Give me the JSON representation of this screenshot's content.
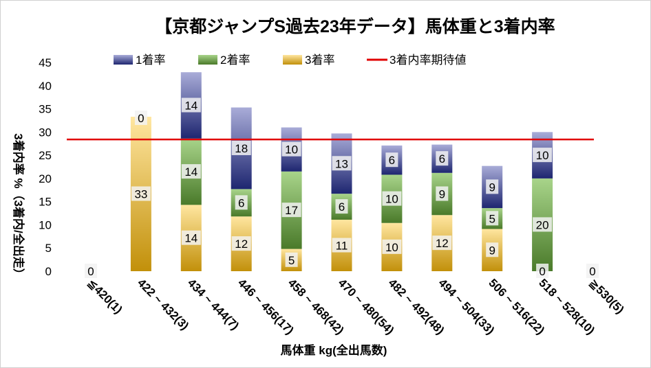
{
  "chart_data": {
    "type": "bar",
    "stacked": true,
    "title": "【京都ジャンプS過去23年データ】馬体重と3着内率",
    "xlabel": "馬体重 kg(全出馬数)",
    "ylabel": "3着内率 %（3着内/全出走）",
    "ylim": [
      0,
      45
    ],
    "yticks": [
      "0",
      "5",
      "10",
      "15",
      "20",
      "25",
      "30",
      "35",
      "40",
      "45"
    ],
    "grid": false,
    "legend_position": "top",
    "categories": [
      "≦420(1)",
      "422 ~ 432(3)",
      "434 ~ 444(7)",
      "446 ~ 456(17)",
      "458 ~ 468(42)",
      "470 ~ 480(54)",
      "482 ~ 492(48)",
      "494 ~ 504(33)",
      "506 ~ 516(22)",
      "518 ~ 528(10)",
      "≧530(5)"
    ],
    "series": [
      {
        "name": "3着率",
        "color": "#c9960f",
        "values": [
          0,
          33.3,
          14.3,
          11.8,
          4.8,
          11.1,
          10.4,
          12.1,
          9.1,
          0,
          0
        ],
        "labels": [
          "0",
          "33",
          "14",
          "12",
          "5",
          "11",
          "10",
          "12",
          "9",
          "0",
          "0"
        ]
      },
      {
        "name": "2着率",
        "color": "#5a8a35",
        "values": [
          0,
          0,
          14.3,
          5.9,
          16.7,
          5.6,
          10.4,
          9.1,
          4.5,
          20,
          0
        ],
        "labels": [
          null,
          null,
          "14",
          "6",
          "17",
          "6",
          "10",
          "9",
          "5",
          "20",
          null
        ]
      },
      {
        "name": "1着率",
        "color": "#2e3680",
        "values": [
          0,
          0,
          14.3,
          17.6,
          9.5,
          13.0,
          6.3,
          6.1,
          9.1,
          10,
          0
        ],
        "labels": [
          null,
          "0",
          "14",
          "18",
          "10",
          "13",
          "6",
          "6",
          "9",
          "10",
          null
        ]
      }
    ],
    "reference_line": {
      "name": "3着内率期待値",
      "value": 28.4,
      "color": "#e00000"
    },
    "legend": [
      "1着率",
      "2着率",
      "3着率",
      "3着内率期待値"
    ]
  }
}
